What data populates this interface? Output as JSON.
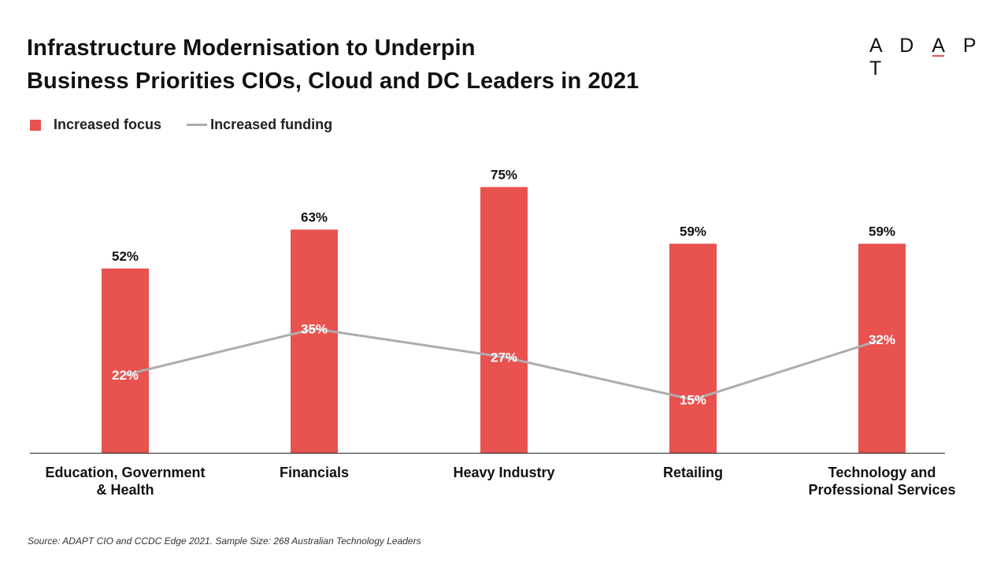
{
  "title": {
    "line1": "Infrastructure Modernisation to Underpin",
    "line2": "Business Priorities CIOs, Cloud and DC Leaders in 2021"
  },
  "logo": {
    "text": "ADAPT",
    "accent_color": "#e8524f"
  },
  "source": "Source: ADAPT CIO and CCDC Edge 2021. Sample Size: 268 Australian Technology Leaders",
  "chart_data": {
    "type": "bar",
    "categories": [
      [
        "Education, Government",
        "& Health"
      ],
      [
        "Financials"
      ],
      [
        "Heavy Industry"
      ],
      [
        "Retailing"
      ],
      [
        "Technology and",
        "Professional Services"
      ]
    ],
    "series": [
      {
        "name": "Increased focus",
        "type": "bar",
        "color": "#e8524f",
        "values": [
          52,
          63,
          75,
          59,
          59
        ],
        "labels": [
          "52%",
          "63%",
          "75%",
          "59%",
          "59%"
        ]
      },
      {
        "name": "Increased funding",
        "type": "line",
        "color": "#b0acac",
        "values": [
          22,
          35,
          27,
          15,
          32
        ],
        "labels": [
          "22%",
          "35%",
          "27%",
          "15%",
          "32%"
        ]
      }
    ],
    "ylim": [
      0,
      100
    ],
    "grid": false,
    "legend_position": "top-left"
  }
}
